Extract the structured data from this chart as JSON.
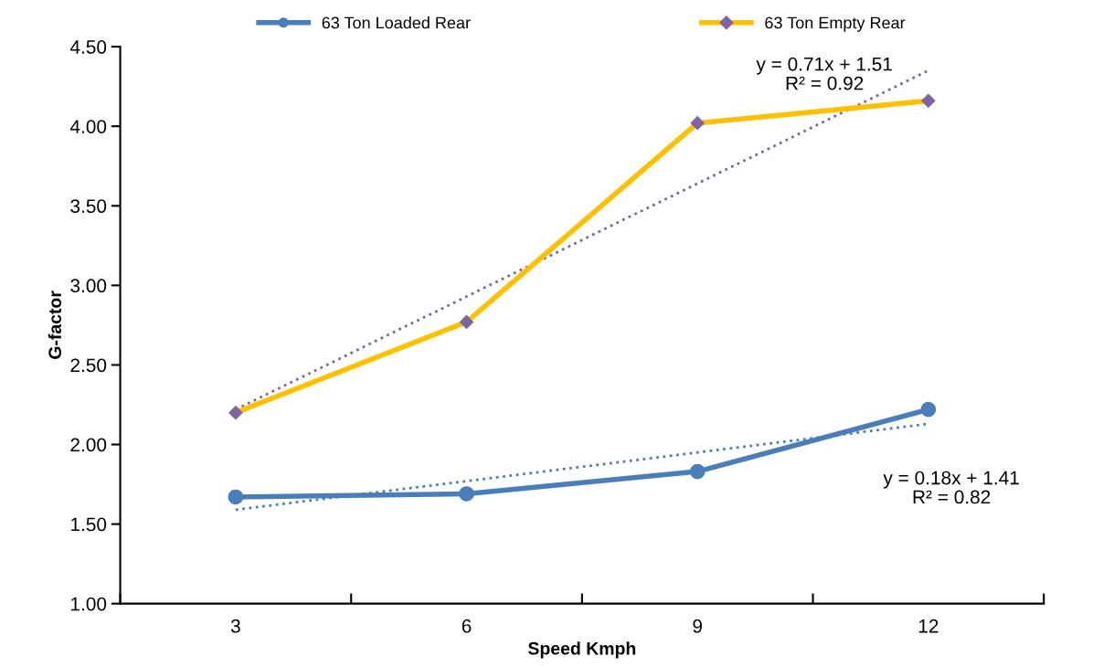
{
  "chart_data": {
    "type": "line",
    "xlabel": "Speed Kmph",
    "ylabel": "G-factor",
    "categories": [
      "3",
      "6",
      "9",
      "12"
    ],
    "series": [
      {
        "name": "63 Ton Loaded Rear",
        "color": "#4a7ebb",
        "marker": "circle",
        "values": [
          1.67,
          1.69,
          1.83,
          2.22
        ]
      },
      {
        "name": "63 Ton Empty Rear",
        "color": "#ffc000",
        "colors": [
          "#8064a2",
          "#8064a2",
          "#8064a2",
          "#8064a2"
        ],
        "marker": "diamond",
        "values": [
          2.2,
          2.77,
          4.02,
          4.16
        ]
      },
      {
        "type": "line",
        "color": "#4a7ebb",
        "line_style": "dotted",
        "marker": "none",
        "values": [
          1.59,
          1.77,
          1.95,
          2.13
        ]
      },
      {
        "type": "line",
        "color": "#8064a2",
        "line_style": "dotted",
        "marker": "none",
        "values": [
          2.22,
          2.93,
          3.64,
          4.35
        ]
      }
    ],
    "ylim": [
      1.0,
      4.5
    ],
    "yticks": [
      {
        "value": 1.0,
        "label": "1.00"
      },
      {
        "value": 1.5,
        "label": "1.50"
      },
      {
        "value": 2.0,
        "label": "2.00"
      },
      {
        "value": 2.5,
        "label": "2.50"
      },
      {
        "value": 3.0,
        "label": "3.00"
      },
      {
        "value": 3.5,
        "label": "3.50"
      },
      {
        "value": 4.0,
        "label": "4.00"
      },
      {
        "value": 4.5,
        "label": "4.50"
      }
    ],
    "annotations": [
      "y = 0.71x + 1.51\nR² = 0.92",
      "y = 0.18x + 1.41\nR² = 0.82"
    ],
    "legend": "top",
    "grid": false
  }
}
